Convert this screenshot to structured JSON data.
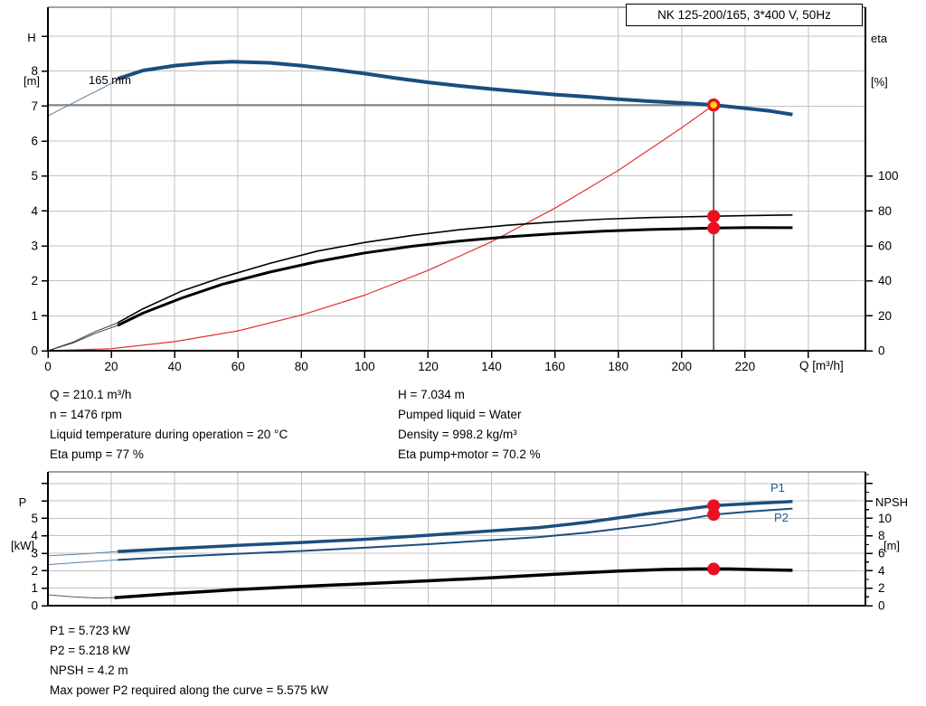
{
  "title_box": "NK 125-200/165, 3*400 V, 50Hz",
  "axes": {
    "top_left_line1": "H",
    "top_left_line2": "[m]",
    "top_right_line1": "eta",
    "top_right_line2": "[%]",
    "top_x_title": "Q [m³/h]",
    "bottom_left_line1": "P",
    "bottom_left_line2": "[kW]",
    "bottom_right_line1": "NPSH",
    "bottom_right_line2": "[m]"
  },
  "curve_labels": {
    "pump": "165 mm",
    "p1": "P1",
    "p2": "P2"
  },
  "results_top": {
    "left": [
      "Q = 210.1 m³/h",
      "n = 1476 rpm",
      "Liquid temperature during operation = 20 °C",
      "Eta pump = 77 %"
    ],
    "right": [
      "H = 7.034 m",
      "Pumped liquid = Water",
      "Density = 998.2 kg/m³",
      "Eta pump+motor = 70.2 %"
    ]
  },
  "results_bottom": [
    "P1 = 5.723 kW",
    "P2 = 5.218 kW",
    "NPSH = 4.2 m",
    "Max power P2 required along the curve = 5.575 kW"
  ],
  "colors": {
    "curve_blue": "#1b4e7e",
    "curve_blue_thin": "#5d7fa3",
    "system_red": "#e03030",
    "marker_red": "#e81123",
    "marker_yellow": "#ffdf00",
    "grid_gray": "#c2c2c2",
    "label_blue": "#1d5a94"
  },
  "chart_data": [
    {
      "type": "line",
      "name": "head-efficiency-chart",
      "title": "NK 125-200/165, 3*400 V, 50Hz",
      "xlabel": "Q [m³/h]",
      "ylabel": "H [m]",
      "y2label": "eta [%]",
      "xlim": [
        0,
        258
      ],
      "ylim": [
        0,
        9.83
      ],
      "y2lim": [
        0,
        196.6
      ],
      "grid": true,
      "x_ticks": [
        0,
        20,
        40,
        60,
        80,
        100,
        120,
        140,
        160,
        180,
        200,
        220,
        240
      ],
      "x_tick_labels": [
        "0",
        "20",
        "40",
        "60",
        "80",
        "100",
        "120",
        "140",
        "160",
        "180",
        "200",
        "220",
        ""
      ],
      "x_grid": [
        20,
        40,
        60,
        80,
        100,
        120,
        140,
        160,
        180,
        200,
        220,
        240
      ],
      "y_ticks": [
        0,
        1,
        2,
        3,
        4,
        5,
        6,
        7,
        8,
        9
      ],
      "y_tick_labels": [
        "0",
        "1",
        "2",
        "3",
        "4",
        "5",
        "6",
        "7",
        "8",
        ""
      ],
      "y_grid": [
        1,
        2,
        3,
        4,
        5,
        6,
        7,
        8,
        9
      ],
      "y2_ticks": [
        0,
        20,
        40,
        60,
        80,
        100
      ],
      "y2_tick_labels": [
        "0",
        "20",
        "40",
        "60",
        "80",
        "100"
      ],
      "operating_point": {
        "Q": 210.1,
        "H": 7.034,
        "eta_pump": 77,
        "eta_pump_motor": 70.2
      },
      "guides": [
        {
          "type": "h",
          "y": 7.034,
          "x1": 0,
          "x2": 210.1,
          "color": "#5f5f5f",
          "width": 1.3
        },
        {
          "type": "v",
          "x": 210.1,
          "y1": 0,
          "y2": 7.034,
          "color": "#1a1a1a",
          "width": 1.3
        }
      ],
      "series": [
        {
          "name": "pump-curve-start-thin",
          "axis": "y",
          "color": "#5d7fa3",
          "width": 1,
          "points": [
            [
              0,
              6.72
            ],
            [
              6,
              7.0
            ],
            [
              12,
              7.28
            ],
            [
              18,
              7.55
            ],
            [
              23,
              7.8
            ]
          ]
        },
        {
          "name": "pump-curve-165mm",
          "axis": "y",
          "color": "#1b4e7e",
          "width": 4,
          "points": [
            [
              22,
              7.78
            ],
            [
              30,
              8.02
            ],
            [
              40,
              8.16
            ],
            [
              50,
              8.24
            ],
            [
              58,
              8.27
            ],
            [
              70,
              8.24
            ],
            [
              80,
              8.16
            ],
            [
              90,
              8.05
            ],
            [
              100,
              7.93
            ],
            [
              110,
              7.8
            ],
            [
              120,
              7.68
            ],
            [
              130,
              7.58
            ],
            [
              140,
              7.49
            ],
            [
              150,
              7.41
            ],
            [
              160,
              7.33
            ],
            [
              170,
              7.27
            ],
            [
              180,
              7.2
            ],
            [
              190,
              7.14
            ],
            [
              200,
              7.09
            ],
            [
              210.1,
              7.034
            ],
            [
              220,
              6.94
            ],
            [
              228,
              6.86
            ],
            [
              235,
              6.76
            ]
          ]
        },
        {
          "name": "system-curve",
          "axis": "y",
          "color": "#e03030",
          "width": 1.2,
          "points": [
            [
              0,
              0
            ],
            [
              20,
              0.06
            ],
            [
              40,
              0.26
            ],
            [
              60,
              0.57
            ],
            [
              80,
              1.02
            ],
            [
              100,
              1.59
            ],
            [
              120,
              2.3
            ],
            [
              140,
              3.12
            ],
            [
              160,
              4.08
            ],
            [
              180,
              5.16
            ],
            [
              200,
              6.38
            ],
            [
              210.1,
              7.034
            ]
          ]
        },
        {
          "name": "eta-pump-curve-thin",
          "axis": "y2",
          "color": "#3c3c3c",
          "width": 1,
          "points": [
            [
              0,
              0
            ],
            [
              8,
              5
            ],
            [
              15,
              11
            ],
            [
              22,
              16
            ]
          ]
        },
        {
          "name": "eta-pump-curve",
          "axis": "y2",
          "color": "#000000",
          "width": 1.6,
          "points": [
            [
              22,
              16
            ],
            [
              30,
              24
            ],
            [
              42,
              34
            ],
            [
              55,
              42
            ],
            [
              70,
              50
            ],
            [
              85,
              57
            ],
            [
              100,
              62
            ],
            [
              115,
              66
            ],
            [
              130,
              69.3
            ],
            [
              145,
              71.8
            ],
            [
              160,
              73.8
            ],
            [
              175,
              75.3
            ],
            [
              190,
              76.2
            ],
            [
              210.1,
              77
            ],
            [
              222,
              77.4
            ],
            [
              235,
              77.7
            ]
          ]
        },
        {
          "name": "eta-pump-motor-curve-thin",
          "axis": "y2",
          "color": "#3c3c3c",
          "width": 1,
          "points": [
            [
              0,
              0
            ],
            [
              8,
              4.5
            ],
            [
              15,
              10
            ],
            [
              22,
              14.5
            ]
          ]
        },
        {
          "name": "eta-pump-motor-curve",
          "axis": "y2",
          "color": "#000000",
          "width": 3,
          "points": [
            [
              22,
              14.5
            ],
            [
              30,
              21.5
            ],
            [
              42,
              30
            ],
            [
              55,
              38
            ],
            [
              70,
              45
            ],
            [
              85,
              51
            ],
            [
              100,
              56
            ],
            [
              115,
              59.8
            ],
            [
              130,
              62.8
            ],
            [
              145,
              65.2
            ],
            [
              160,
              67
            ],
            [
              175,
              68.4
            ],
            [
              190,
              69.4
            ],
            [
              210.1,
              70.2
            ],
            [
              222,
              70.5
            ],
            [
              235,
              70.4
            ]
          ]
        }
      ],
      "markers": [
        {
          "name": "eta-pump-op-dot",
          "x": 210.1,
          "y": 77,
          "axis": "y2",
          "r": 7,
          "fill": "#e81123"
        },
        {
          "name": "eta-pump-motor-op-dot",
          "x": 210.1,
          "y": 70.2,
          "axis": "y2",
          "r": 7,
          "fill": "#e81123"
        },
        {
          "name": "operating-point",
          "x": 210.1,
          "y": 7.034,
          "axis": "y",
          "r": 5.5,
          "fill": "#ffdf00",
          "stroke": "#e81123",
          "stroke_width": 3.5
        }
      ]
    },
    {
      "type": "line",
      "name": "power-npsh-chart",
      "title": "",
      "xlabel": "",
      "ylabel": "P [kW]",
      "y2label": "NPSH [m]",
      "xlim": [
        0,
        258
      ],
      "ylim": [
        0,
        7.66
      ],
      "y2lim": [
        0,
        15.32
      ],
      "grid": true,
      "x_ticks": [],
      "x_tick_labels": [],
      "x_grid": [
        20,
        40,
        60,
        80,
        100,
        120,
        140,
        160,
        180,
        200,
        220,
        240
      ],
      "y_ticks": [
        0,
        1,
        2,
        3,
        4,
        5,
        6,
        7
      ],
      "y_tick_labels": [
        "0",
        "1",
        "2",
        "3",
        "4",
        "5",
        "",
        ""
      ],
      "y_grid": [
        1,
        2,
        3,
        4,
        5,
        6,
        7
      ],
      "y2_ticks": [
        0,
        2,
        4,
        6,
        8,
        10,
        12,
        14
      ],
      "y2_tick_labels": [
        "0",
        "2",
        "4",
        "6",
        "8",
        "10",
        "",
        ""
      ],
      "y2_minor_ticks": [
        1,
        3,
        5,
        7,
        9,
        11,
        13,
        15
      ],
      "operating_point": {
        "Q": 210.1,
        "P1": 5.723,
        "P2": 5.218,
        "NPSH": 4.2,
        "P2_max_along_curve": 5.575
      },
      "guides": [],
      "series": [
        {
          "name": "p1-curve-thin",
          "axis": "y",
          "color": "#5d7fa3",
          "width": 1,
          "points": [
            [
              0,
              2.85
            ],
            [
              10,
              2.95
            ],
            [
              22,
              3.1
            ]
          ]
        },
        {
          "name": "p1-curve",
          "axis": "y",
          "color": "#1b4e7e",
          "width": 3.5,
          "points": [
            [
              22,
              3.1
            ],
            [
              40,
              3.27
            ],
            [
              60,
              3.45
            ],
            [
              80,
              3.62
            ],
            [
              100,
              3.8
            ],
            [
              120,
              4.03
            ],
            [
              140,
              4.28
            ],
            [
              155,
              4.47
            ],
            [
              170,
              4.77
            ],
            [
              190,
              5.28
            ],
            [
              200,
              5.5
            ],
            [
              210.1,
              5.723
            ],
            [
              222,
              5.85
            ],
            [
              235,
              5.97
            ]
          ]
        },
        {
          "name": "p2-curve-thin",
          "axis": "y",
          "color": "#5d7fa3",
          "width": 1,
          "points": [
            [
              0,
              2.35
            ],
            [
              10,
              2.48
            ],
            [
              22,
              2.62
            ]
          ]
        },
        {
          "name": "p2-curve",
          "axis": "y",
          "color": "#1b4e7e",
          "width": 2,
          "points": [
            [
              22,
              2.62
            ],
            [
              40,
              2.8
            ],
            [
              60,
              2.97
            ],
            [
              80,
              3.13
            ],
            [
              100,
              3.32
            ],
            [
              120,
              3.52
            ],
            [
              140,
              3.75
            ],
            [
              155,
              3.93
            ],
            [
              170,
              4.18
            ],
            [
              190,
              4.62
            ],
            [
              200,
              4.9
            ],
            [
              210.1,
              5.218
            ],
            [
              222,
              5.4
            ],
            [
              235,
              5.56
            ]
          ]
        },
        {
          "name": "npsh-curve-thin",
          "axis": "y2",
          "color": "#5a5a5a",
          "width": 1,
          "points": [
            [
              0,
              1.24
            ],
            [
              8,
              1.0
            ],
            [
              15,
              0.88
            ],
            [
              21,
              0.92
            ]
          ]
        },
        {
          "name": "npsh-curve",
          "axis": "y2",
          "color": "#000000",
          "width": 3.5,
          "points": [
            [
              21,
              0.92
            ],
            [
              40,
              1.4
            ],
            [
              60,
              1.85
            ],
            [
              80,
              2.2
            ],
            [
              100,
              2.5
            ],
            [
              120,
              2.85
            ],
            [
              140,
              3.2
            ],
            [
              160,
              3.6
            ],
            [
              180,
              3.95
            ],
            [
              195,
              4.15
            ],
            [
              205,
              4.2
            ],
            [
              215,
              4.2
            ],
            [
              225,
              4.12
            ],
            [
              235,
              4.05
            ]
          ]
        }
      ],
      "markers": [
        {
          "name": "p1-op-dot",
          "x": 210.1,
          "y": 5.723,
          "axis": "y",
          "r": 7,
          "fill": "#e81123"
        },
        {
          "name": "p2-op-dot",
          "x": 210.1,
          "y": 5.218,
          "axis": "y",
          "r": 7,
          "fill": "#e81123"
        },
        {
          "name": "npsh-op-dot",
          "x": 210.1,
          "y": 4.2,
          "axis": "y2",
          "r": 7,
          "fill": "#e81123"
        }
      ]
    }
  ]
}
